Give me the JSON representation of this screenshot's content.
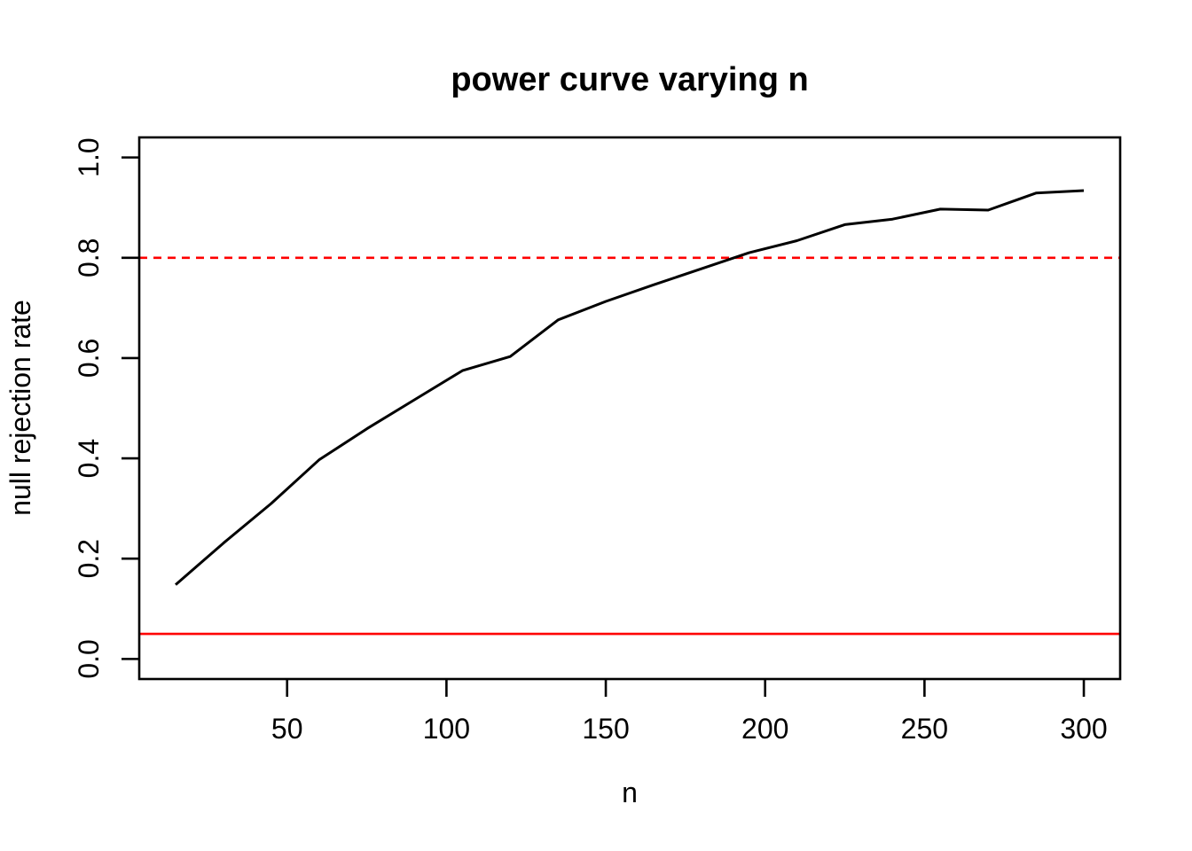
{
  "chart_data": {
    "type": "line",
    "title": "power curve varying n",
    "xlabel": "n",
    "ylabel": "null rejection rate",
    "x": [
      15,
      30,
      45,
      60,
      75,
      90,
      105,
      120,
      135,
      150,
      165,
      180,
      195,
      210,
      225,
      240,
      255,
      270,
      285,
      300
    ],
    "series": [
      {
        "name": "null rejection rate",
        "color": "#000000",
        "values": [
          0.148,
          0.231,
          0.31,
          0.397,
          0.459,
          0.517,
          0.575,
          0.603,
          0.676,
          0.713,
          0.746,
          0.778,
          0.81,
          0.834,
          0.866,
          0.877,
          0.897,
          0.895,
          0.929,
          0.934
        ]
      }
    ],
    "hlines": [
      {
        "name": "target-power-line",
        "y": 0.8,
        "style": "dashed",
        "color": "#FF0000"
      },
      {
        "name": "alpha-line",
        "y": 0.05,
        "style": "solid",
        "color": "#FF0000"
      }
    ],
    "xlim": [
      3.6,
      311.4
    ],
    "ylim": [
      -0.04,
      1.04
    ],
    "xticks": [
      {
        "v": 50,
        "label": "50"
      },
      {
        "v": 100,
        "label": "100"
      },
      {
        "v": 150,
        "label": "150"
      },
      {
        "v": 200,
        "label": "200"
      },
      {
        "v": 250,
        "label": "250"
      },
      {
        "v": 300,
        "label": "300"
      }
    ],
    "yticks": [
      {
        "v": 0.0,
        "label": "0.0"
      },
      {
        "v": 0.2,
        "label": "0.2"
      },
      {
        "v": 0.4,
        "label": "0.4"
      },
      {
        "v": 0.6,
        "label": "0.6"
      },
      {
        "v": 0.8,
        "label": "0.8"
      },
      {
        "v": 1.0,
        "label": "1.0"
      }
    ],
    "grid": "off",
    "legend": "none",
    "background": "#FFFFFF",
    "box_color": "#000000"
  }
}
